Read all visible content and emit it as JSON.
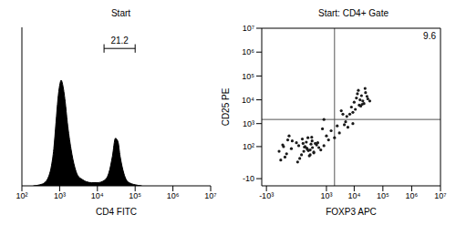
{
  "chart_data": [
    {
      "type": "area",
      "title": "Start",
      "x_label": "CD4 FITC",
      "log": "x",
      "tick_labels": "x",
      "color": "#000000",
      "x": [
        200,
        300,
        400,
        500,
        600,
        700,
        800,
        900,
        1000,
        1100,
        1200,
        1400,
        1600,
        2000,
        2500,
        3000,
        4000,
        5000,
        7000,
        10000,
        15000,
        20000,
        25000,
        30000,
        35000,
        40000,
        50000,
        60000,
        80000,
        100000,
        150000
      ],
      "values": [
        0,
        1,
        3,
        8,
        18,
        35,
        60,
        82,
        95,
        100,
        96,
        80,
        60,
        35,
        18,
        10,
        6,
        4,
        3,
        3,
        5,
        12,
        28,
        45,
        42,
        28,
        12,
        5,
        2,
        1,
        0
      ],
      "xlim": [
        100,
        10000000
      ],
      "xticks": [
        {
          "value": 100,
          "label": "10²"
        },
        {
          "value": 1000,
          "label": "10³"
        },
        {
          "value": 10000,
          "label": "10⁴"
        },
        {
          "value": 100000,
          "label": "10⁵"
        },
        {
          "value": 1000000,
          "label": "10⁶"
        },
        {
          "value": 10000000,
          "label": "10⁷"
        }
      ],
      "ylim": [
        0,
        150
      ],
      "gate": {
        "label": "21.2",
        "x": [
          15000,
          100000
        ],
        "y": 130
      }
    },
    {
      "type": "scatter",
      "title": "Start: CD4+ Gate",
      "x_label": "FOXP3 APC",
      "y_label": "CD25 PE",
      "color": "#1a1a1a",
      "marker": "circle",
      "x": [
        -300,
        -200,
        -150,
        -100,
        -50,
        0,
        50,
        100,
        150,
        200,
        250,
        300,
        400,
        500,
        -250,
        -80,
        20,
        80,
        120,
        180,
        260,
        350,
        -120,
        60,
        140,
        220,
        300,
        -40,
        30,
        90,
        160,
        240,
        -180,
        10,
        70,
        130,
        200,
        450,
        600,
        800,
        8000,
        10000,
        12000,
        15000,
        18000,
        20000,
        25000,
        30000,
        9000,
        14000,
        22000,
        11000,
        16000,
        28000,
        13000,
        19000,
        35000,
        7000,
        24000,
        17000,
        1000,
        1500,
        2500,
        3000,
        4000,
        5000,
        6000,
        800,
        1200,
        3500,
        700,
        2000,
        4500,
        5500,
        9000
      ],
      "values": [
        60,
        120,
        30,
        200,
        80,
        150,
        40,
        100,
        250,
        70,
        180,
        50,
        120,
        90,
        20,
        300,
        110,
        60,
        160,
        35,
        90,
        140,
        45,
        220,
        75,
        130,
        55,
        180,
        25,
        95,
        65,
        260,
        100,
        15,
        140,
        85,
        40,
        150,
        70,
        110,
        5000,
        8000,
        12000,
        6000,
        15000,
        9000,
        20000,
        11000,
        3000,
        25000,
        7000,
        4000,
        10000,
        14000,
        18000,
        6500,
        9000,
        2500,
        30000,
        5500,
        300,
        500,
        800,
        400,
        2500,
        1200,
        700,
        1500,
        200,
        3500,
        600,
        250,
        900,
        2000,
        1000
      ],
      "xlim": [
        -1500,
        10000000
      ],
      "xticks": [
        {
          "value": -1000,
          "label": "-10³"
        },
        {
          "value": 1000,
          "label": "10³"
        },
        {
          "value": 10000,
          "label": "10⁴"
        },
        {
          "value": 100000,
          "label": "10⁵"
        },
        {
          "value": 1000000,
          "label": "10⁶"
        },
        {
          "value": 10000000,
          "label": "10⁷"
        }
      ],
      "ylim": [
        -30,
        10000000
      ],
      "yticks": [
        -10,
        {
          "value": 100,
          "label": "10²"
        },
        {
          "value": 1000,
          "label": "10³"
        },
        {
          "value": 10000,
          "label": "10⁴"
        },
        {
          "value": 100000,
          "label": "10⁵"
        },
        {
          "value": 1000000,
          "label": "10⁶"
        },
        {
          "value": 10000000,
          "label": "10⁷"
        }
      ],
      "quadrants": {
        "x": 2000,
        "y": 1500,
        "upper_right": 9.6
      }
    }
  ]
}
